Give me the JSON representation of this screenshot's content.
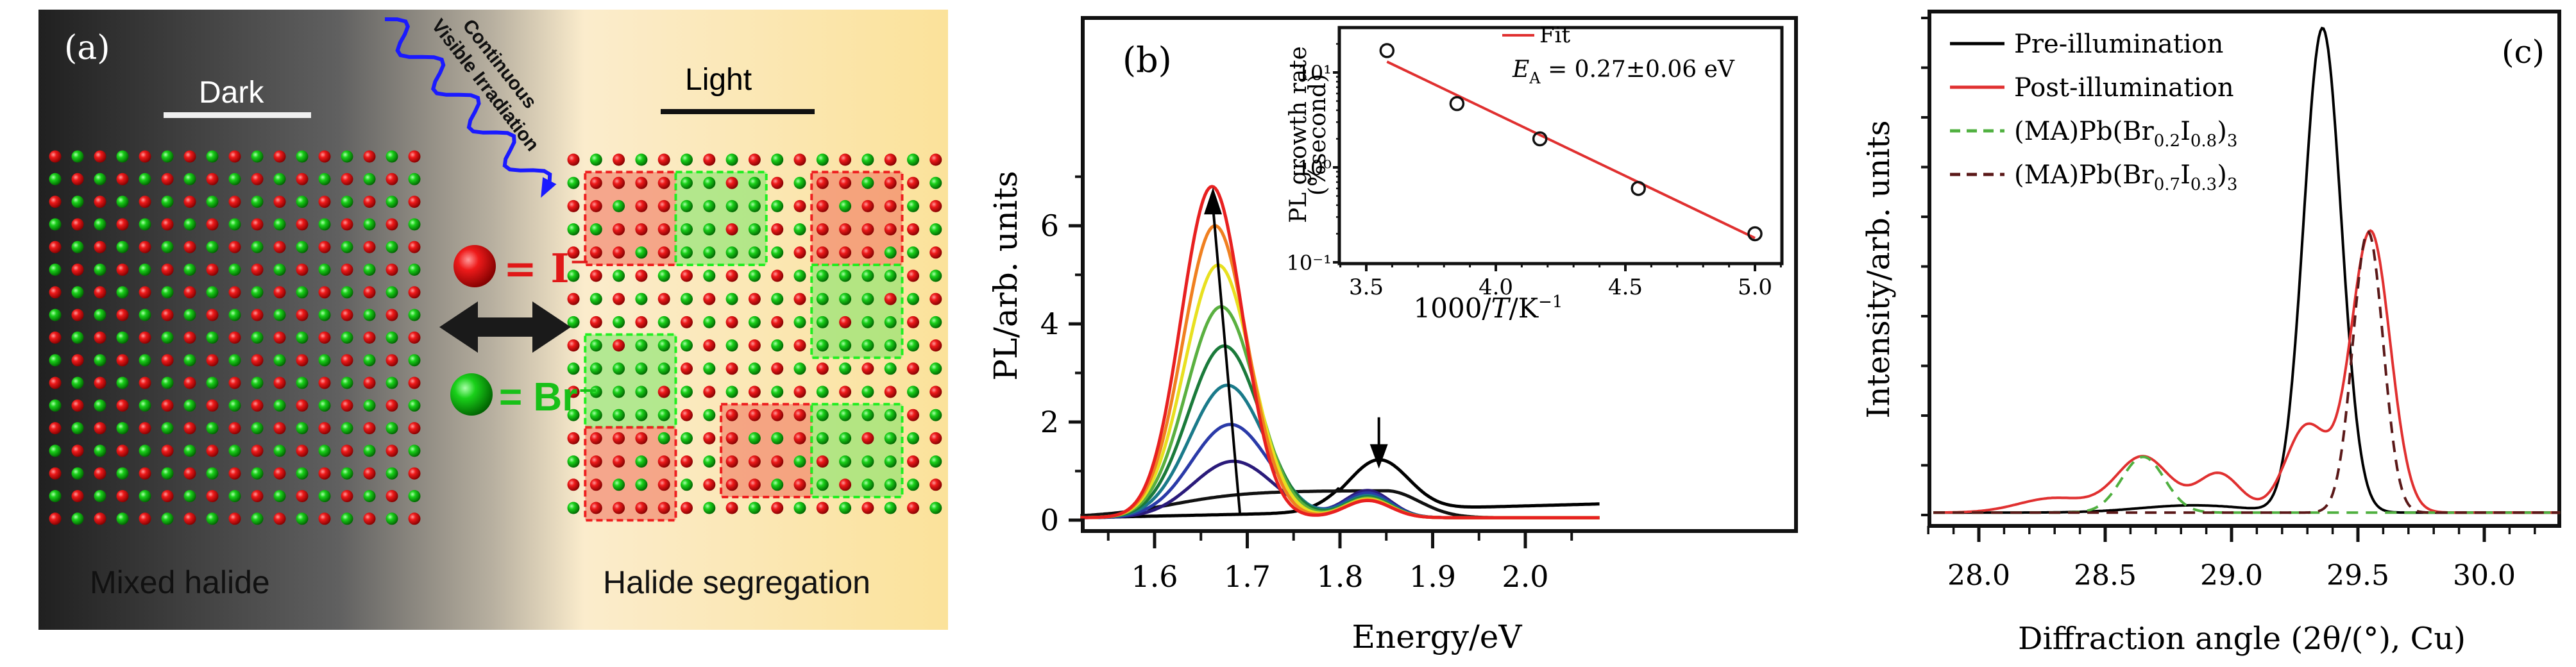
{
  "panel_a": {
    "label": "(a)",
    "dark_label": "Dark",
    "light_label": "Light",
    "irradiation_label_1": "Continuous",
    "irradiation_label_2": "Visible Irradiation",
    "legend_iodide": "= I⁻",
    "legend_bromide": "= Br⁻",
    "left_caption": "Mixed halide",
    "right_caption": "Halide segregation",
    "colors": {
      "iodide": "#e01010",
      "bromide": "#10c010",
      "arrow": "#1a1aff"
    },
    "grid_cols": 17,
    "grid_rows": 17,
    "right_grid_rows": 16,
    "domains": [
      {
        "type": "I",
        "col": 1,
        "row": 1,
        "w": 4,
        "h": 4
      },
      {
        "type": "Br",
        "col": 5,
        "row": 1,
        "w": 4,
        "h": 4
      },
      {
        "type": "I",
        "col": 11,
        "row": 1,
        "w": 4,
        "h": 4
      },
      {
        "type": "Br",
        "col": 11,
        "row": 5,
        "w": 4,
        "h": 4
      },
      {
        "type": "Br",
        "col": 1,
        "row": 8,
        "w": 4,
        "h": 4
      },
      {
        "type": "I",
        "col": 1,
        "row": 12,
        "w": 4,
        "h": 4
      },
      {
        "type": "I",
        "col": 7,
        "row": 11,
        "w": 4,
        "h": 4
      },
      {
        "type": "Br",
        "col": 11,
        "row": 11,
        "w": 4,
        "h": 4
      }
    ]
  },
  "chart_data": [
    {
      "id": "b-main",
      "type": "line",
      "panel_label": "(b)",
      "xlabel": "Energy/eV",
      "ylabel": "PL/arb. units",
      "xlim": [
        1.52,
        2.08
      ],
      "ylim": [
        -0.1,
        7.0
      ],
      "xticks": [
        1.6,
        1.7,
        1.8,
        1.9,
        2.0
      ],
      "xtick_labels": [
        "1.6",
        "1.7",
        "1.8",
        "1.9",
        "2.0"
      ],
      "yticks": [
        0,
        2,
        4,
        6
      ],
      "ytick_labels": [
        "0",
        "2",
        "4",
        "6"
      ],
      "series": [
        {
          "name": "t0",
          "color": "#000000",
          "peak_low": 0.12,
          "peak_high": 1.02,
          "high_center": 1.842
        },
        {
          "name": "t1",
          "color": "#111111",
          "peak_low": 0.55,
          "peak_high": 0.6,
          "high_center": 1.835
        },
        {
          "name": "t2",
          "color": "#2a1a7a",
          "peak_low": 1.15,
          "peak_high": 0.55,
          "high_center": 1.83
        },
        {
          "name": "t3",
          "color": "#2a3aa8",
          "peak_low": 1.9,
          "peak_high": 0.5,
          "high_center": 1.83
        },
        {
          "name": "t4",
          "color": "#1a7a8a",
          "peak_low": 2.7,
          "peak_high": 0.45,
          "high_center": 1.83
        },
        {
          "name": "t5",
          "color": "#1a7a3a",
          "peak_low": 3.5,
          "peak_high": 0.42,
          "high_center": 1.83
        },
        {
          "name": "t6",
          "color": "#5ab040",
          "peak_low": 4.3,
          "peak_high": 0.4,
          "high_center": 1.83
        },
        {
          "name": "t7",
          "color": "#e8e020",
          "peak_low": 5.15,
          "peak_high": 0.38,
          "high_center": 1.83
        },
        {
          "name": "t8",
          "color": "#f08020",
          "peak_low": 5.95,
          "peak_high": 0.36,
          "high_center": 1.83
        },
        {
          "name": "t9",
          "color": "#e82020",
          "peak_low": 6.75,
          "peak_high": 0.35,
          "high_center": 1.83
        }
      ],
      "annotations": [
        {
          "type": "arrow-up",
          "from": [
            1.692,
            0.15
          ],
          "to": [
            1.663,
            6.65
          ]
        },
        {
          "type": "arrow-down",
          "at": [
            1.842,
            1.05
          ]
        }
      ]
    },
    {
      "id": "b-inset",
      "type": "scatter",
      "xlabel": "1000/T/K⁻¹",
      "ylabel_1": "PL growth rate",
      "ylabel_2": "(%second)",
      "yscale": "log",
      "xlim": [
        3.4,
        5.1
      ],
      "ylim": [
        0.1,
        25
      ],
      "xticks": [
        3.5,
        4.0,
        4.5,
        5.0
      ],
      "xtick_labels": [
        "3.5",
        "4.0",
        "4.5",
        "5.0"
      ],
      "yticks": [
        0.1,
        1,
        10
      ],
      "ytick_labels": [
        "10⁻¹",
        "10⁰",
        "10¹"
      ],
      "points": [
        {
          "x": 3.58,
          "y": 17
        },
        {
          "x": 3.85,
          "y": 4.7
        },
        {
          "x": 4.17,
          "y": 2.0
        },
        {
          "x": 4.55,
          "y": 0.6
        },
        {
          "x": 5.0,
          "y": 0.2
        }
      ],
      "fit": {
        "x": [
          3.58,
          5.0
        ],
        "y": [
          13,
          0.18
        ],
        "color": "#e03030"
      },
      "legend": "Fit",
      "annotation": "E_A = 0.27±0.06 eV",
      "annotation_sub": "A"
    },
    {
      "id": "c",
      "type": "line",
      "panel_label": "(c)",
      "xlabel": "Diffraction angle (2θ/(°), Cu)",
      "ylabel": "Intensity/arb. units",
      "xlim": [
        27.82,
        30.3
      ],
      "ylim": [
        -0.05,
        1.05
      ],
      "xticks": [
        28.0,
        28.5,
        29.0,
        29.5,
        30.0
      ],
      "xtick_labels": [
        "28.0",
        "28.5",
        "29.0",
        "29.5",
        "30.0"
      ],
      "y_minor_ticks": 11,
      "series": [
        {
          "name": "Pre-illumination",
          "color": "#000000",
          "dash": false,
          "peaks": [
            [
              29.36,
              1.0,
              0.105
            ],
            [
              28.85,
              0.015,
              0.3
            ]
          ]
        },
        {
          "name": "Post-illumination",
          "color": "#e03030",
          "dash": false,
          "peaks": [
            [
              29.55,
              0.58,
              0.11
            ],
            [
              28.65,
              0.115,
              0.15
            ],
            [
              28.95,
              0.08,
              0.12
            ],
            [
              29.3,
              0.18,
              0.12
            ],
            [
              28.3,
              0.03,
              0.2
            ]
          ]
        },
        {
          "name": "(MA)Pb(Br0.2I0.8)3",
          "color": "#50b040",
          "dash": true,
          "peaks": [
            [
              28.65,
              0.115,
              0.12
            ]
          ]
        },
        {
          "name": "(MA)Pb(Br0.7I0.3)3",
          "color": "#5a1818",
          "dash": true,
          "peaks": [
            [
              29.54,
              0.58,
              0.085
            ]
          ]
        }
      ],
      "legend": [
        {
          "text": "Pre-illumination",
          "sub": null
        },
        {
          "text": "Post-illumination",
          "sub": null
        },
        {
          "text": "(MA)Pb(Br",
          "sub1": "0.2",
          "mid": "I",
          "sub2": "0.8",
          "end": ")",
          "sub3": "3"
        },
        {
          "text": "(MA)Pb(Br",
          "sub1": "0.7",
          "mid": "I",
          "sub2": "0.3",
          "end": ")",
          "sub3": "3"
        }
      ],
      "legend_position": "top-left"
    }
  ]
}
